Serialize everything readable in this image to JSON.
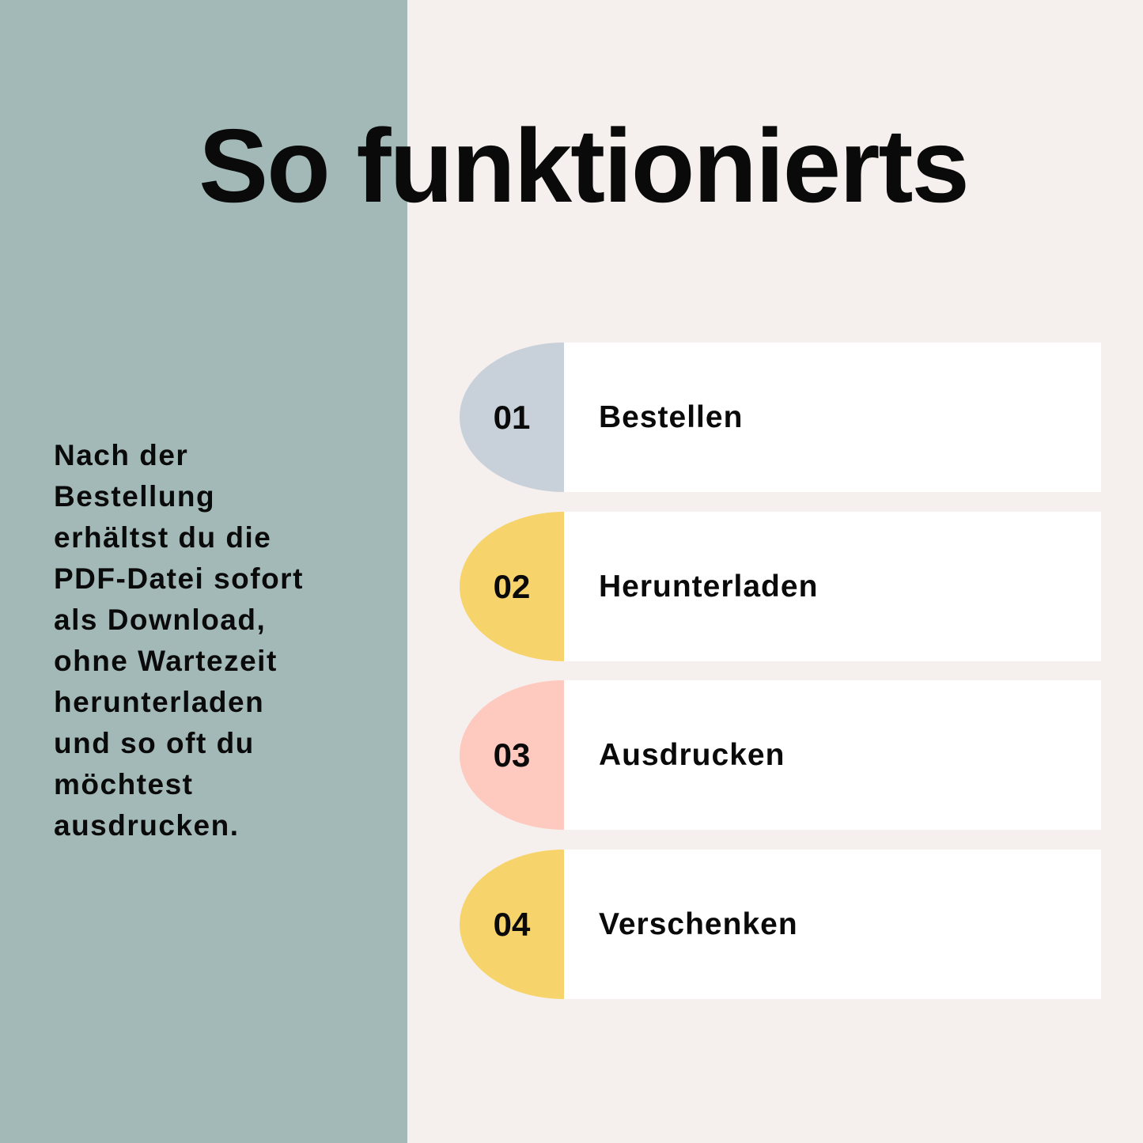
{
  "title": "So funktionierts",
  "description_lines": [
    "Nach der",
    "Bestellung",
    "erhältst du die",
    "PDF-Datei sofort",
    "als Download,",
    "ohne Wartezeit",
    "herunterladen",
    "und so oft du",
    "möchtest",
    "ausdrucken."
  ],
  "steps": [
    {
      "number": "01",
      "label": "Bestellen",
      "color": "#c8d0d9"
    },
    {
      "number": "02",
      "label": "Herunterladen",
      "color": "#f6d46b"
    },
    {
      "number": "03",
      "label": "Ausdrucken",
      "color": "#fec9be"
    },
    {
      "number": "04",
      "label": "Verschenken",
      "color": "#f6d46b"
    }
  ],
  "colors": {
    "left_panel": "#a3b9b8",
    "background": "#f5f0ed"
  }
}
